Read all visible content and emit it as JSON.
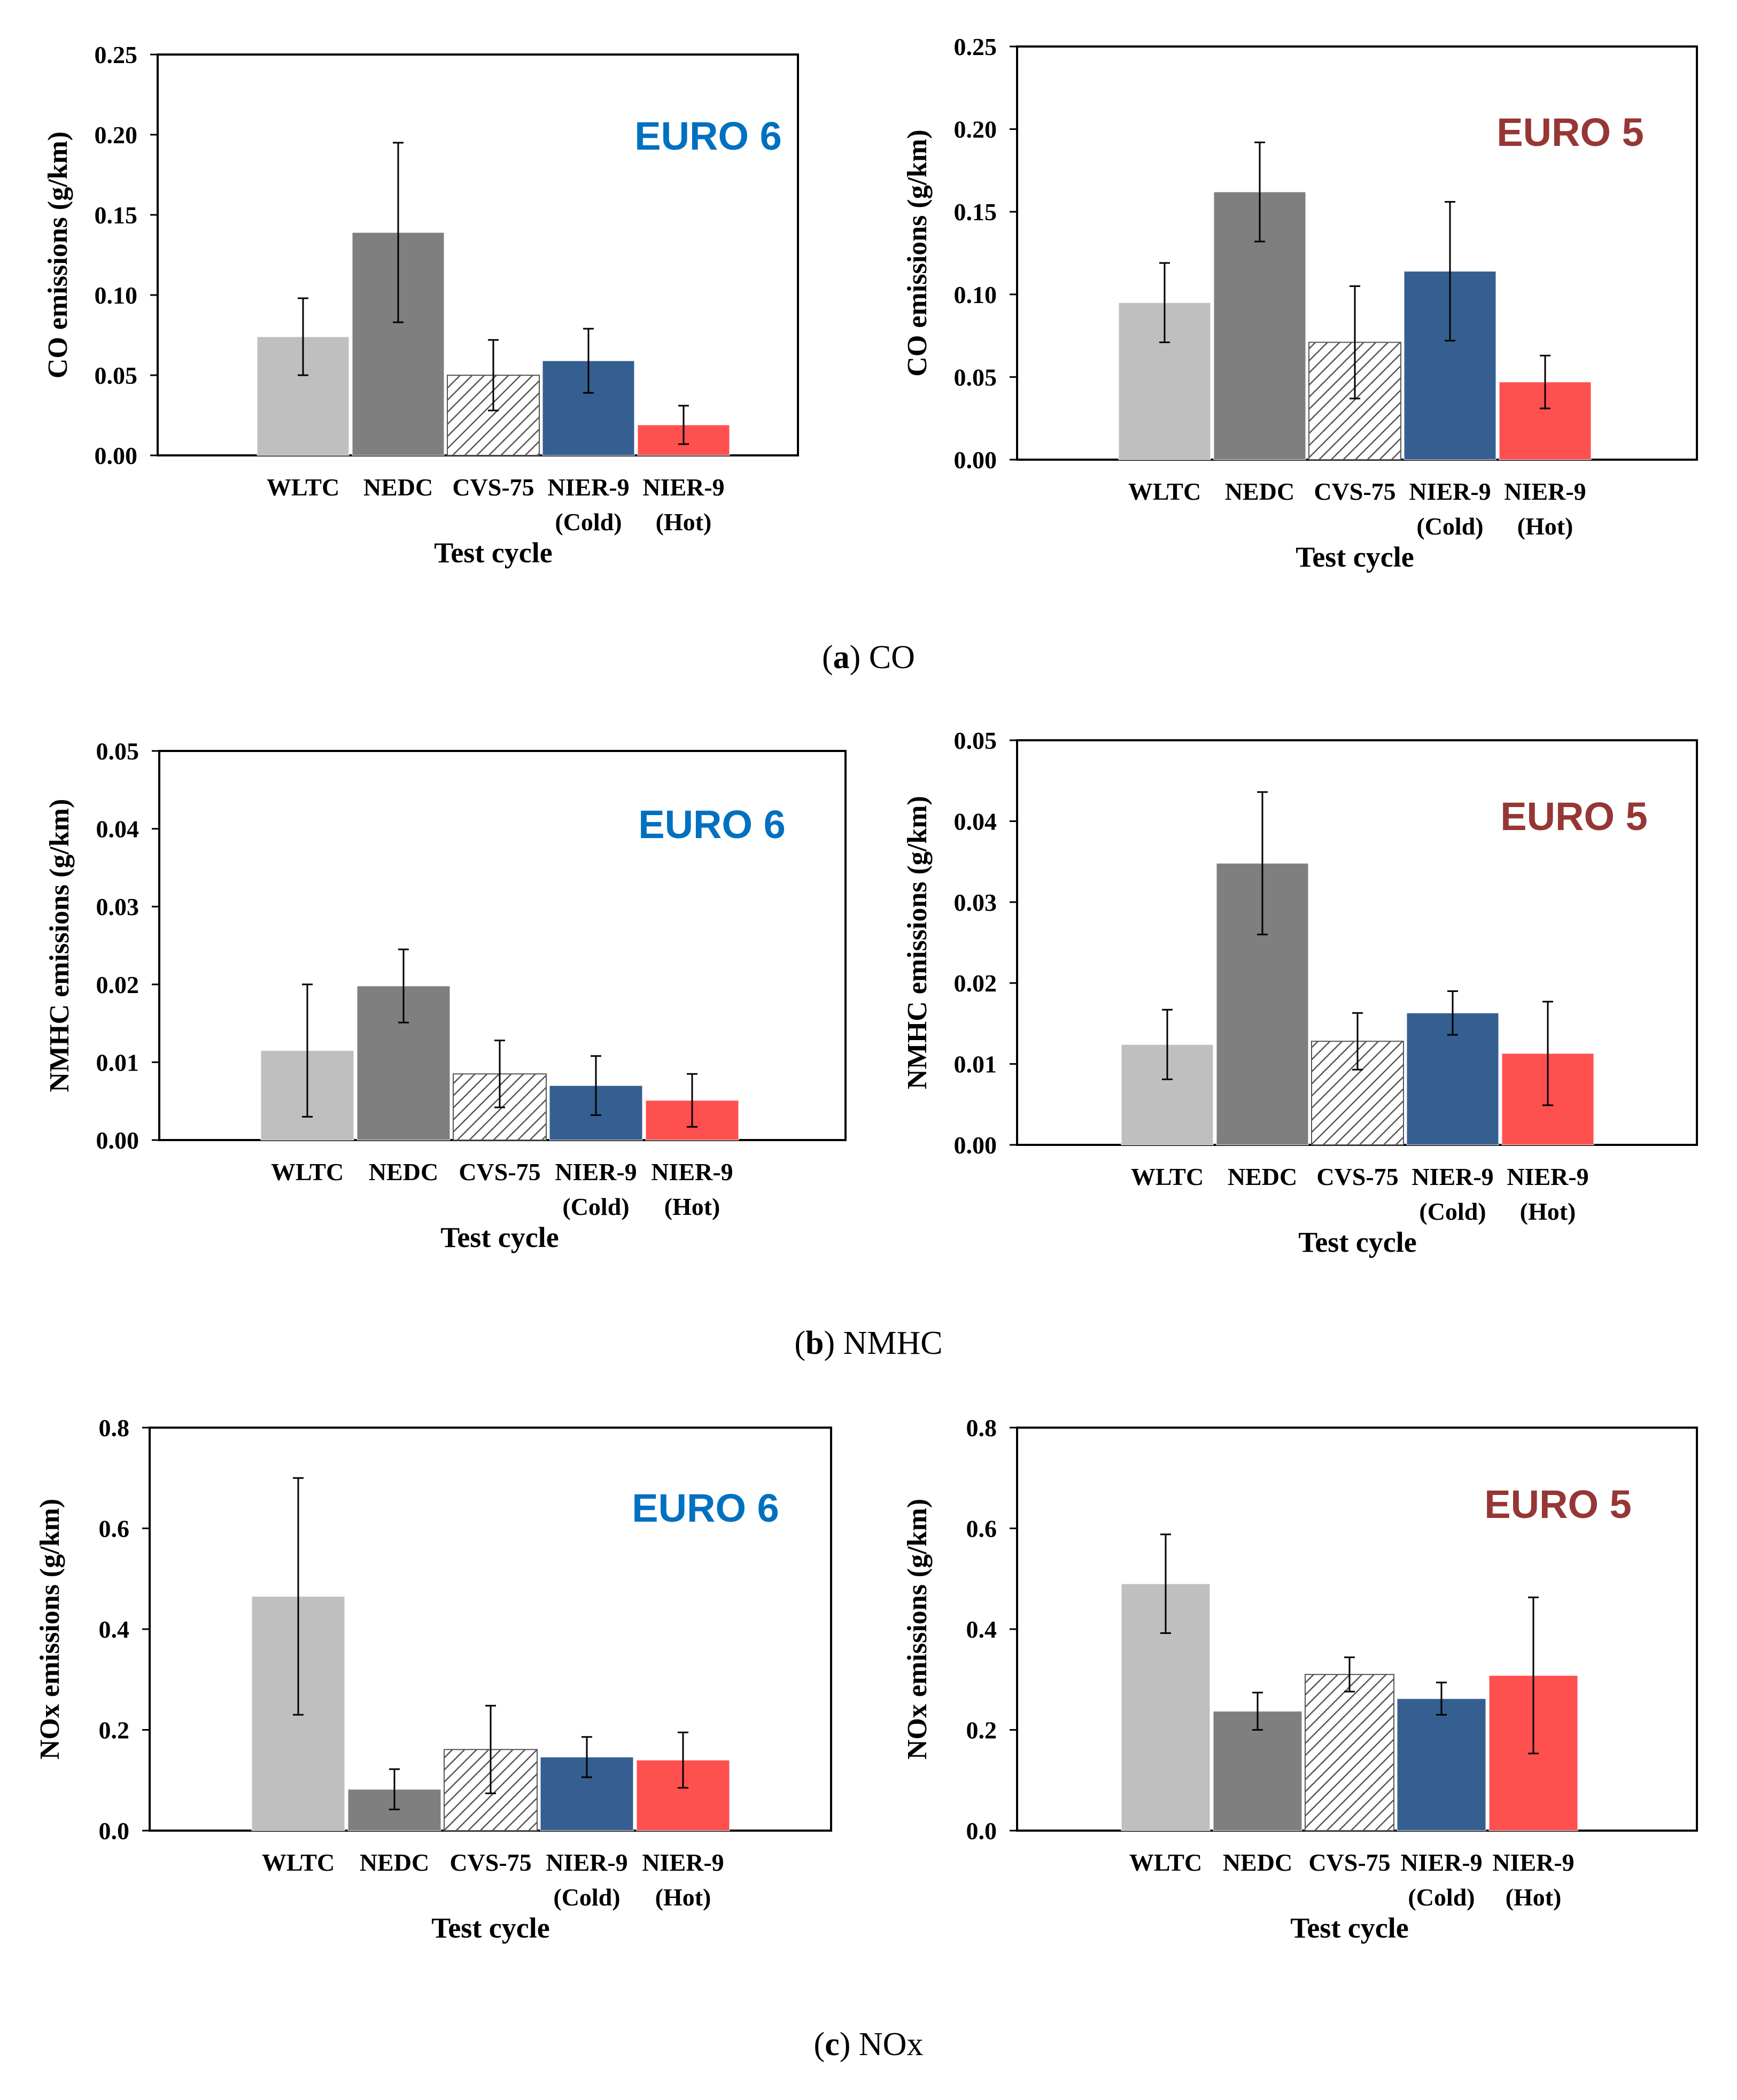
{
  "colors": {
    "WLTC": "#bfbfbf",
    "NEDC": "#7f7f7f",
    "CVS-75": "hatch",
    "NIER-9 (Cold)": "#365f91",
    "NIER-9 (Hot)": "#ff5050",
    "euro6": "#0070c0",
    "euro5": "#953735"
  },
  "captions": [
    {
      "letter": "a",
      "text": "CO"
    },
    {
      "letter": "b",
      "text": "NMHC"
    },
    {
      "letter": "c",
      "text": "NOx"
    }
  ],
  "chart_data": [
    {
      "id": "co-euro6",
      "type": "bar",
      "title": "EURO 6",
      "ylabel": "CO emissions (g/km)",
      "xlabel": "Test cycle",
      "categories": [
        [
          "WLTC"
        ],
        [
          "NEDC"
        ],
        [
          "CVS-75"
        ],
        [
          "NIER-9",
          "(Cold)"
        ],
        [
          "NIER-9",
          "(Hot)"
        ]
      ],
      "values": [
        0.074,
        0.139,
        0.05,
        0.059,
        0.019
      ],
      "errors": [
        0.024,
        0.056,
        0.022,
        0.02,
        0.012
      ],
      "ylim": [
        0,
        0.25
      ],
      "yticks": [
        0.0,
        0.05,
        0.1,
        0.15,
        0.2,
        0.25
      ],
      "ytick_labels": [
        "0.00",
        "0.05",
        "0.10",
        "0.15",
        "0.20",
        "0.25"
      ]
    },
    {
      "id": "co-euro5",
      "type": "bar",
      "title": "EURO 5",
      "ylabel": "CO emissions (g/km)",
      "xlabel": "Test cycle",
      "categories": [
        [
          "WLTC"
        ],
        [
          "NEDC"
        ],
        [
          "CVS-75"
        ],
        [
          "NIER-9",
          "(Cold)"
        ],
        [
          "NIER-9",
          "(Hot)"
        ]
      ],
      "values": [
        0.095,
        0.162,
        0.071,
        0.114,
        0.047
      ],
      "errors": [
        0.024,
        0.03,
        0.034,
        0.042,
        0.016
      ],
      "ylim": [
        0,
        0.25
      ],
      "yticks": [
        0.0,
        0.05,
        0.1,
        0.15,
        0.2,
        0.25
      ],
      "ytick_labels": [
        "0.00",
        "0.05",
        "0.10",
        "0.15",
        "0.20",
        "0.25"
      ]
    },
    {
      "id": "nmhc-euro6",
      "type": "bar",
      "title": "EURO 6",
      "ylabel": "NMHC emissions (g/km)",
      "xlabel": "Test cycle",
      "categories": [
        [
          "WLTC"
        ],
        [
          "NEDC"
        ],
        [
          "CVS-75"
        ],
        [
          "NIER-9",
          "(Cold)"
        ],
        [
          "NIER-9",
          "(Hot)"
        ]
      ],
      "values": [
        0.0115,
        0.0198,
        0.0085,
        0.007,
        0.0051
      ],
      "errors": [
        0.0085,
        0.0047,
        0.0043,
        0.0038,
        0.0034
      ],
      "ylim": [
        0,
        0.05
      ],
      "yticks": [
        0.0,
        0.01,
        0.02,
        0.03,
        0.04,
        0.05
      ],
      "ytick_labels": [
        "0.00",
        "0.01",
        "0.02",
        "0.03",
        "0.04",
        "0.05"
      ]
    },
    {
      "id": "nmhc-euro5",
      "type": "bar",
      "title": "EURO 5",
      "ylabel": "NMHC emissions (g/km)",
      "xlabel": "Test cycle",
      "categories": [
        [
          "WLTC"
        ],
        [
          "NEDC"
        ],
        [
          "CVS-75"
        ],
        [
          "NIER-9",
          "(Cold)"
        ],
        [
          "NIER-9",
          "(Hot)"
        ]
      ],
      "values": [
        0.0124,
        0.0348,
        0.0128,
        0.0163,
        0.0113
      ],
      "errors": [
        0.0043,
        0.0088,
        0.0035,
        0.0027,
        0.0064
      ],
      "ylim": [
        0,
        0.05
      ],
      "yticks": [
        0.0,
        0.01,
        0.02,
        0.03,
        0.04,
        0.05
      ],
      "ytick_labels": [
        "0.00",
        "0.01",
        "0.02",
        "0.03",
        "0.04",
        "0.05"
      ]
    },
    {
      "id": "nox-euro6",
      "type": "bar",
      "title": "EURO 6",
      "ylabel": "NOx emissions (g/km)",
      "xlabel": "Test cycle",
      "categories": [
        [
          "WLTC"
        ],
        [
          "NEDC"
        ],
        [
          "CVS-75"
        ],
        [
          "NIER-9",
          "(Cold)"
        ],
        [
          "NIER-9",
          "(Hot)"
        ]
      ],
      "values": [
        0.465,
        0.082,
        0.161,
        0.146,
        0.14
      ],
      "errors": [
        0.235,
        0.04,
        0.087,
        0.04,
        0.055
      ],
      "ylim": [
        0,
        0.8
      ],
      "yticks": [
        0.0,
        0.2,
        0.4,
        0.6,
        0.8
      ],
      "ytick_labels": [
        "0.0",
        "0.2",
        "0.4",
        "0.6",
        "0.8"
      ]
    },
    {
      "id": "nox-euro5",
      "type": "bar",
      "title": "EURO 5",
      "ylabel": "NOx emissions (g/km)",
      "xlabel": "Test cycle",
      "categories": [
        [
          "WLTC"
        ],
        [
          "NEDC"
        ],
        [
          "CVS-75"
        ],
        [
          "NIER-9",
          "(Cold)"
        ],
        [
          "NIER-9",
          "(Hot)"
        ]
      ],
      "values": [
        0.49,
        0.237,
        0.31,
        0.262,
        0.308
      ],
      "errors": [
        0.098,
        0.037,
        0.034,
        0.032,
        0.155
      ],
      "ylim": [
        0,
        0.8
      ],
      "yticks": [
        0.0,
        0.2,
        0.4,
        0.6,
        0.8
      ],
      "ytick_labels": [
        "0.0",
        "0.2",
        "0.4",
        "0.6",
        "0.8"
      ]
    }
  ]
}
